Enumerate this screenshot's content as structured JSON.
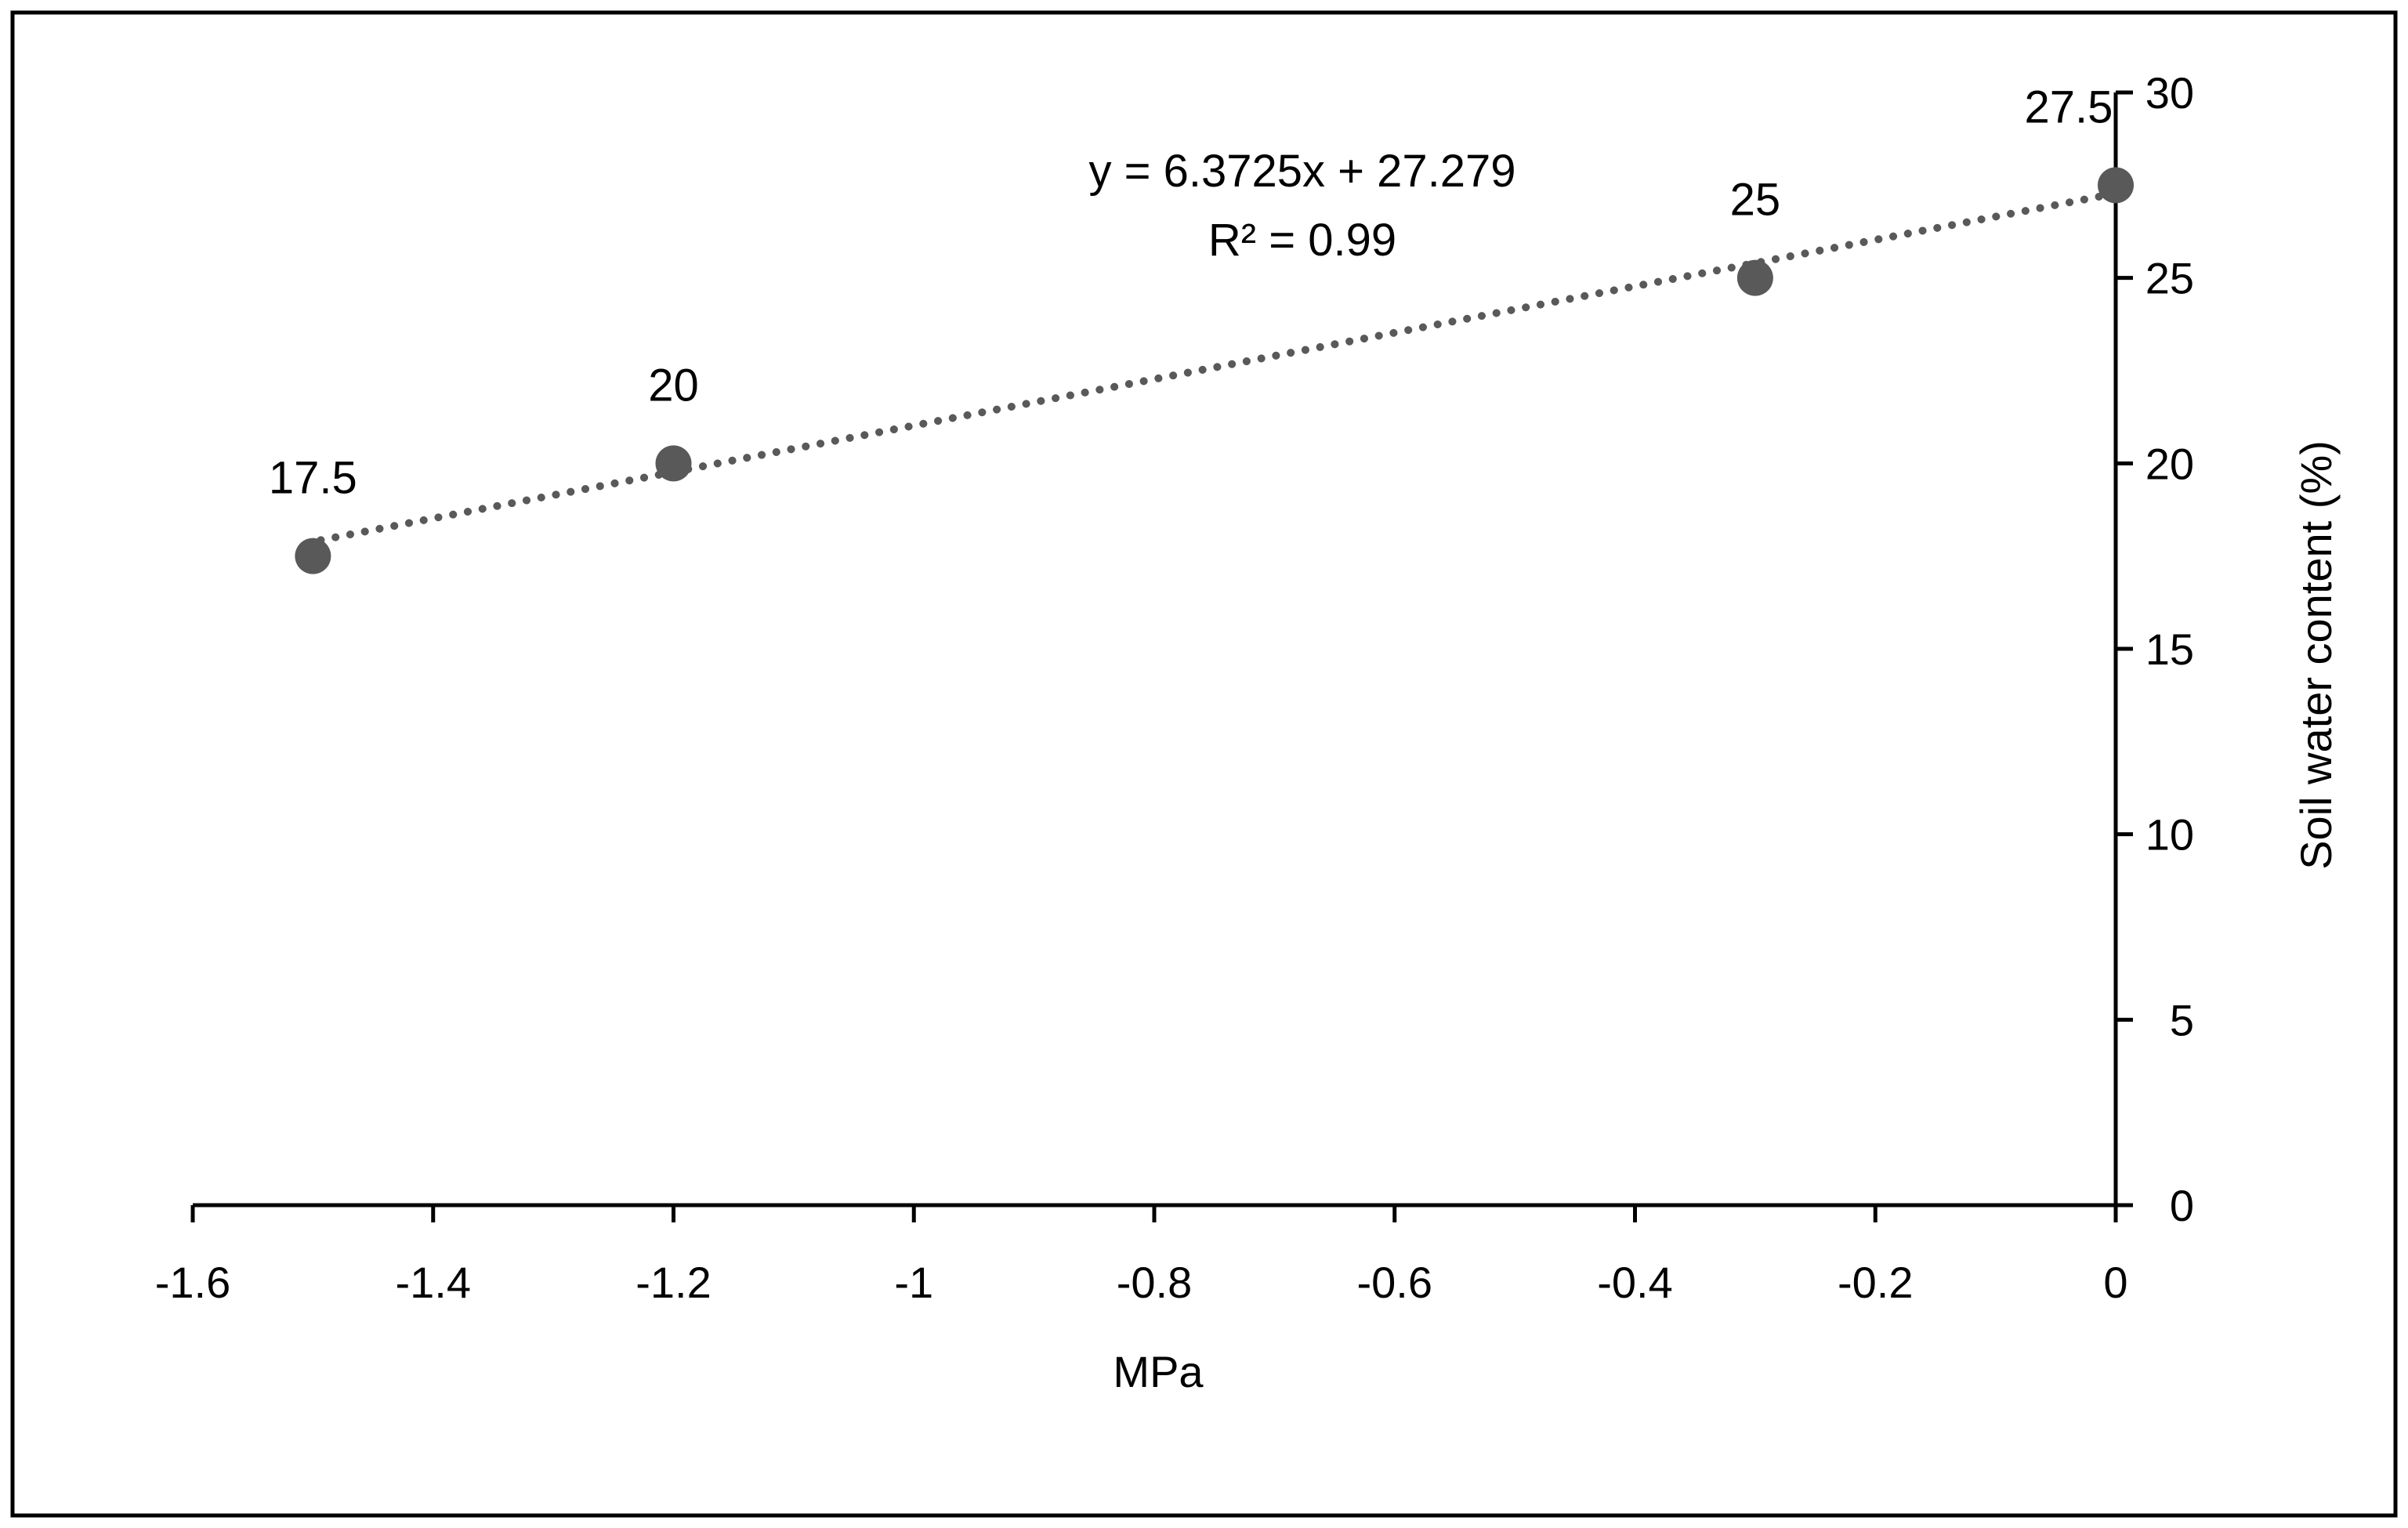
{
  "chart_data": {
    "type": "scatter",
    "title": "",
    "xlabel": "MPa",
    "ylabel": "Soil water content (%)",
    "xlim": [
      -1.6,
      0
    ],
    "ylim": [
      0,
      30
    ],
    "x_ticks": [
      -1.6,
      -1.4,
      -1.2,
      -1,
      -0.8,
      -0.6,
      -0.4,
      -0.2,
      0
    ],
    "x_tick_labels": [
      "-1.6",
      "-1.4",
      "-1.2",
      "-1",
      "-0.8",
      "-0.6",
      "-0.4",
      "-0.2",
      "0"
    ],
    "y_ticks": [
      0,
      5,
      10,
      15,
      20,
      25,
      30
    ],
    "y_tick_labels": [
      "0",
      "5",
      "10",
      "15",
      "20",
      "25",
      "30"
    ],
    "y_axis_position": "right",
    "grid": false,
    "legend": "none",
    "series": [
      {
        "x": [
          -1.5,
          -1.2,
          -0.3,
          0
        ],
        "y": [
          17.5,
          20,
          25,
          27.5
        ],
        "labels": [
          "17.5",
          "20",
          "25",
          "27.5"
        ],
        "color": "#595959"
      }
    ],
    "trendline": {
      "type": "linear",
      "slope": 6.3725,
      "intercept": 27.279,
      "x_range": [
        -1.5,
        0
      ],
      "style": "dotted",
      "color": "#595959",
      "equation_label": "y = 6.3725x + 27.279",
      "r2_label": "R² = 0.99"
    }
  }
}
